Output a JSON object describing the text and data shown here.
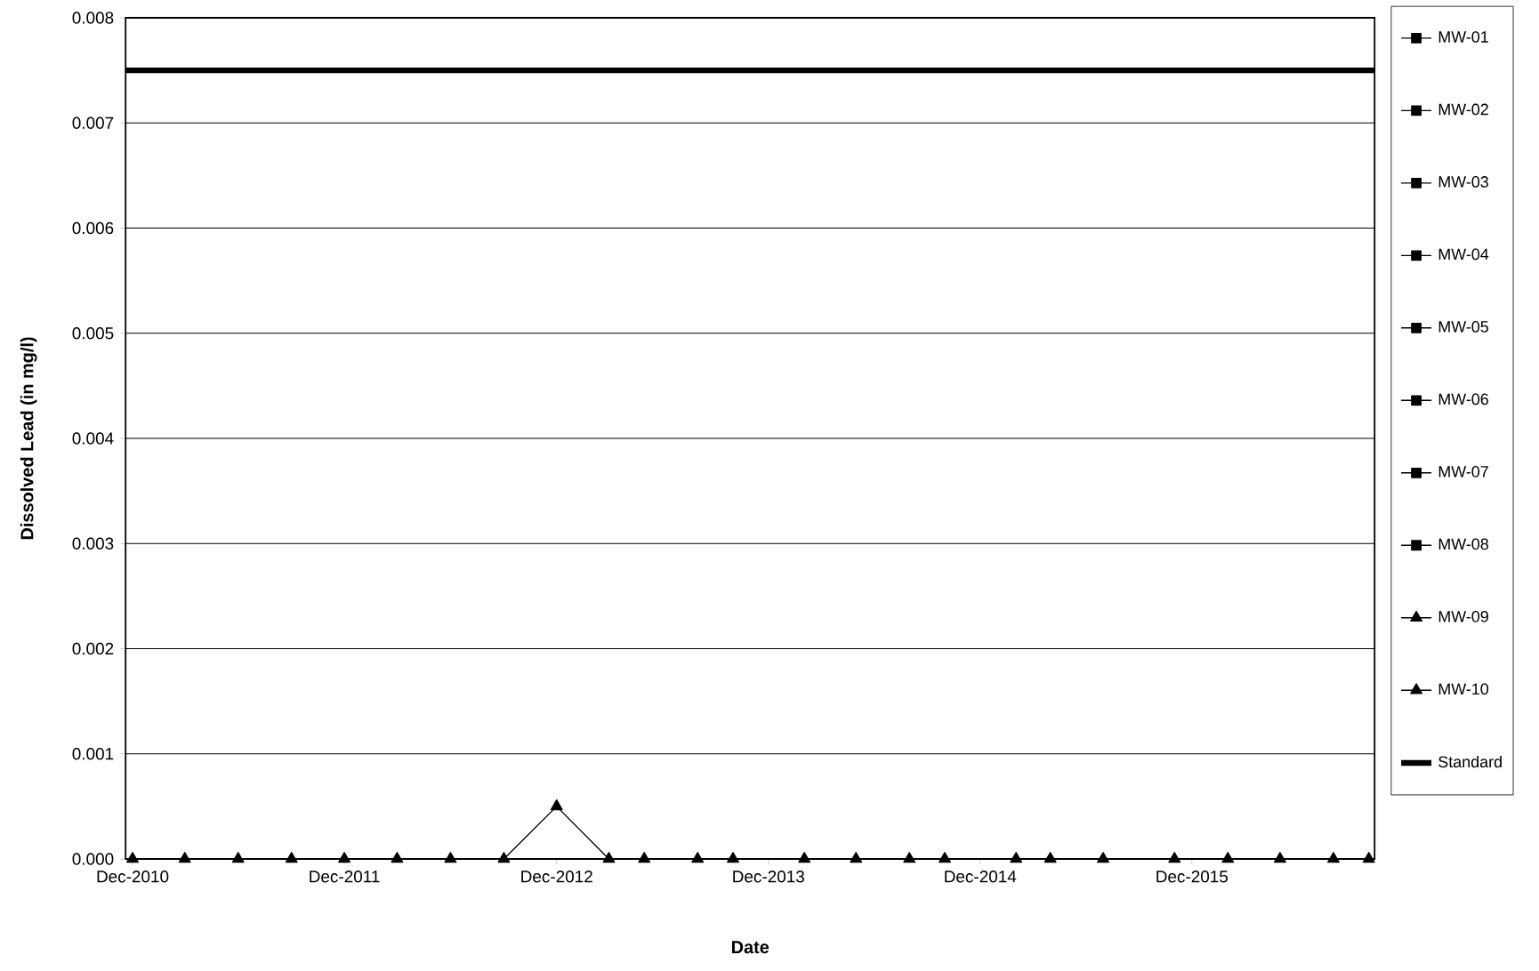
{
  "chart_data": {
    "type": "line",
    "xlabel": "Date",
    "ylabel": "Dissolved Lead (in mg/l)",
    "x": [
      "2010-12",
      "2011-03",
      "2011-06",
      "2011-09",
      "2011-12",
      "2012-03",
      "2012-06",
      "2012-09",
      "2012-12",
      "2013-03",
      "2013-05",
      "2013-08",
      "2013-10",
      "2014-02",
      "2014-05",
      "2014-08",
      "2014-10",
      "2015-02",
      "2015-04",
      "2015-07",
      "2015-11",
      "2016-02",
      "2016-05",
      "2016-08",
      "2016-10"
    ],
    "xlim": [
      "2010-11-19",
      "2016-10-11"
    ],
    "xticks": [
      {
        "value": "2010-12",
        "label": "Dec-2010"
      },
      {
        "value": "2011-12",
        "label": "Dec-2011"
      },
      {
        "value": "2012-12",
        "label": "Dec-2012"
      },
      {
        "value": "2013-12",
        "label": "Dec-2013"
      },
      {
        "value": "2014-12",
        "label": "Dec-2014"
      },
      {
        "value": "2015-12",
        "label": "Dec-2015"
      }
    ],
    "ylim": [
      0,
      0.008
    ],
    "yticks": [
      {
        "value": 0,
        "label": "0.000"
      },
      {
        "value": 0.001,
        "label": "0.001"
      },
      {
        "value": 0.002,
        "label": "0.002"
      },
      {
        "value": 0.003,
        "label": "0.003"
      },
      {
        "value": 0.004,
        "label": "0.004"
      },
      {
        "value": 0.005,
        "label": "0.005"
      },
      {
        "value": 0.006,
        "label": "0.006"
      },
      {
        "value": 0.007,
        "label": "0.007"
      },
      {
        "value": 0.008,
        "label": "0.008"
      }
    ],
    "grid": "y",
    "legend": "right",
    "series": [
      {
        "name": "MW-01",
        "color": "#000000",
        "marker": "square",
        "values": [
          null,
          null,
          null,
          null,
          null,
          null,
          null,
          null,
          null,
          null,
          null,
          null,
          null,
          null,
          null,
          null,
          null,
          null,
          null,
          null,
          null,
          null,
          null,
          null,
          null
        ]
      },
      {
        "name": "MW-02",
        "color": "#000000",
        "marker": "square",
        "values": [
          null,
          null,
          null,
          null,
          null,
          null,
          null,
          null,
          null,
          null,
          null,
          null,
          null,
          null,
          null,
          null,
          null,
          null,
          null,
          null,
          null,
          null,
          null,
          null,
          null
        ]
      },
      {
        "name": "MW-03",
        "color": "#000000",
        "marker": "square",
        "values": [
          null,
          null,
          null,
          null,
          null,
          null,
          null,
          null,
          null,
          null,
          null,
          null,
          null,
          null,
          null,
          null,
          null,
          null,
          null,
          null,
          null,
          null,
          null,
          null,
          null
        ]
      },
      {
        "name": "MW-04",
        "color": "#000000",
        "marker": "square",
        "values": [
          null,
          null,
          null,
          null,
          null,
          null,
          null,
          null,
          null,
          null,
          null,
          null,
          null,
          null,
          null,
          null,
          null,
          null,
          null,
          null,
          null,
          null,
          null,
          null,
          null
        ]
      },
      {
        "name": "MW-05",
        "color": "#000000",
        "marker": "square",
        "values": [
          null,
          null,
          null,
          null,
          null,
          null,
          null,
          null,
          null,
          null,
          null,
          null,
          null,
          null,
          null,
          null,
          null,
          null,
          null,
          null,
          null,
          null,
          null,
          null,
          null
        ]
      },
      {
        "name": "MW-06",
        "color": "#000000",
        "marker": "square",
        "values": [
          null,
          null,
          null,
          null,
          null,
          null,
          null,
          null,
          null,
          null,
          null,
          null,
          null,
          null,
          null,
          null,
          null,
          null,
          null,
          null,
          null,
          null,
          null,
          null,
          null
        ]
      },
      {
        "name": "MW-07",
        "color": "#000000",
        "marker": "square",
        "values": [
          null,
          null,
          null,
          null,
          null,
          null,
          null,
          null,
          null,
          null,
          null,
          null,
          null,
          null,
          null,
          null,
          null,
          null,
          null,
          null,
          null,
          null,
          null,
          null,
          null
        ]
      },
      {
        "name": "MW-08",
        "color": "#000000",
        "marker": "square",
        "values": [
          null,
          null,
          null,
          null,
          null,
          null,
          null,
          null,
          null,
          null,
          null,
          null,
          null,
          null,
          null,
          null,
          null,
          null,
          null,
          null,
          null,
          null,
          null,
          null,
          null
        ]
      },
      {
        "name": "MW-09",
        "color": "#000000",
        "marker": "triangle",
        "values": [
          null,
          null,
          null,
          null,
          null,
          null,
          null,
          null,
          null,
          null,
          null,
          null,
          null,
          null,
          null,
          null,
          null,
          null,
          null,
          null,
          null,
          null,
          null,
          null,
          null
        ]
      },
      {
        "name": "MW-10",
        "color": "#000000",
        "marker": "triangle",
        "values": [
          0,
          0,
          0,
          0,
          0,
          0,
          0,
          0,
          0.0005,
          0,
          0,
          0,
          0,
          0,
          0,
          0,
          0,
          0,
          0,
          0,
          0,
          0,
          0,
          0,
          0
        ]
      },
      {
        "name": "Standard",
        "color": "#000000",
        "marker": "none",
        "x": [
          "2010-11-19",
          "2016-10-11"
        ],
        "values": [
          0.0075,
          0.0075
        ]
      }
    ]
  }
}
